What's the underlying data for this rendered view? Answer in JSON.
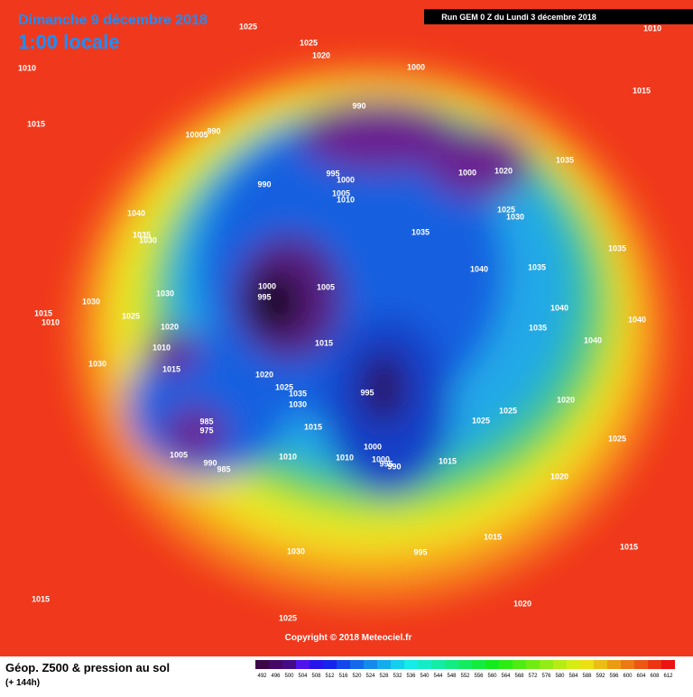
{
  "header": {
    "date": "Dimanche 9 décembre 2018",
    "time": "1:00 locale",
    "run": "Run GEM 0 Z du Lundi 3 décembre 2018"
  },
  "map": {
    "isobar_labels": [
      1025,
      1025,
      1020,
      1000,
      1010,
      1010,
      1015,
      1015,
      990,
      10005,
      990,
      990,
      995,
      1000,
      1005,
      1010,
      1000,
      1020,
      1035,
      1030,
      1025,
      1040,
      1035,
      1030,
      1035,
      1035,
      1040,
      1035,
      1030,
      1030,
      1000,
      995,
      1005,
      1015,
      1010,
      1025,
      1020,
      1040,
      1040,
      1035,
      1010,
      1040,
      1015,
      1030,
      1015,
      1020,
      1025,
      1035,
      1030,
      995,
      1020,
      1025,
      1025,
      1015,
      985,
      975,
      1025,
      1005,
      990,
      985,
      1000,
      1000,
      995,
      990,
      1010,
      1010,
      1015,
      1020,
      995,
      1015,
      1030,
      1015,
      1015,
      1020,
      1025
    ],
    "copyright": "Copyright © 2018 Meteociel.fr"
  },
  "footer": {
    "title": "Géop. Z500 & pression au sol",
    "lead": "(+ 144h)",
    "scale": [
      492,
      496,
      500,
      504,
      508,
      512,
      516,
      520,
      524,
      528,
      532,
      536,
      540,
      544,
      548,
      552,
      556,
      560,
      564,
      568,
      572,
      576,
      580,
      584,
      588,
      592,
      596,
      600,
      604,
      608,
      612
    ]
  }
}
